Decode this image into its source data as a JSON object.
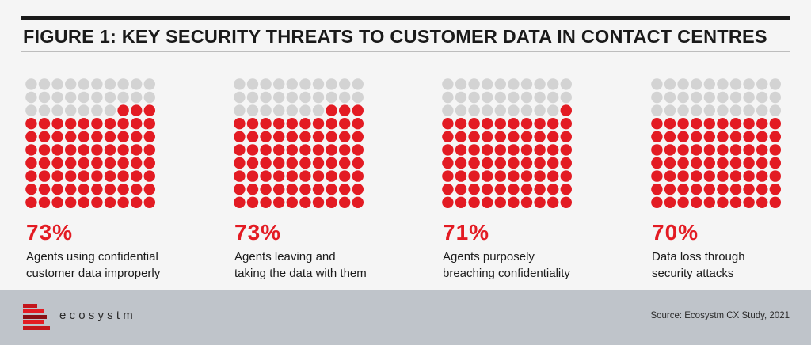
{
  "title": "FIGURE 1: KEY SECURITY THREATS TO CUSTOMER DATA IN CONTACT CENTRES",
  "colors": {
    "filled": "#e31b23",
    "empty": "#d3d3d3",
    "accent": "#e31b23"
  },
  "chart_data": [
    {
      "type": "waffle",
      "value": 73,
      "label": "73%",
      "description": [
        "Agents using confidential",
        "customer data improperly"
      ]
    },
    {
      "type": "waffle",
      "value": 73,
      "label": "73%",
      "description": [
        "Agents leaving and",
        "taking the data with them"
      ]
    },
    {
      "type": "waffle",
      "value": 71,
      "label": "71%",
      "description": [
        "Agents purposely",
        "breaching confidentiality"
      ]
    },
    {
      "type": "waffle",
      "value": 70,
      "label": "70%",
      "description": [
        "Data loss through",
        "security attacks"
      ]
    }
  ],
  "footer": {
    "brand": "ecosystm",
    "source": "Source: Ecosystm CX Study, 2021"
  }
}
